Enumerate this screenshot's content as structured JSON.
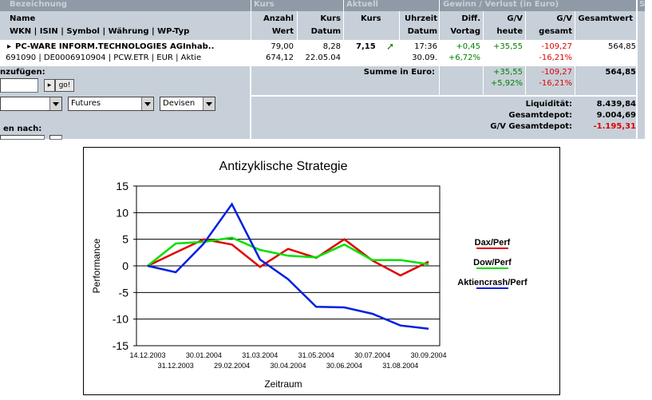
{
  "table": {
    "group_headers": {
      "bezeichnung": "Bezeichnung",
      "kurs": "Kurs",
      "aktuell": "Aktuell",
      "gewinn": "Gewinn / Verlust   (in Euro)",
      "s": "S"
    },
    "columns": {
      "name": "Name",
      "sub": "WKN | ISIN | Symbol | Währung | WP-Typ",
      "anzahl1": "Anzahl",
      "anzahl2": "Wert",
      "kurs1": "Kurs",
      "kurs2": "Datum",
      "aktkurs": "Kurs",
      "uhrzeit1": "Uhrzeit",
      "uhrzeit2": "Datum",
      "diff1": "Diff.",
      "diff2": "Vortag",
      "gv1": "G/V",
      "gv2": "heute",
      "gvg1": "G/V",
      "gvg2": "gesamt",
      "gesamtwert": "Gesamtwert"
    },
    "row": {
      "name": "PC-WARE INFORM.TECHNOLOGIES AGInhab..",
      "ids": "691090 | DE0006910904 | PCW.ETR | EUR | Aktie",
      "anzahl": "79,00",
      "wert": "674,12",
      "kurs": "8,28",
      "kurs_datum": "22.05.04",
      "akt_kurs": "7,15",
      "uhrzeit": "17:36",
      "datum": "30.09.",
      "diff": "+0,45",
      "diff_pct": "+6,72%",
      "gv_heute": "+35,55",
      "gv_gesamt": "-109,27",
      "gv_gesamt_pct": "-16,21%",
      "gesamtwert": "564,85"
    },
    "summe": {
      "label": "Summe in Euro:",
      "gv_heute": "+35,55",
      "gv_heute_pct": "+5,92%",
      "gv_gesamt": "-109,27",
      "gv_gesamt_pct": "-16,21%",
      "gesamtwert": "564,85"
    },
    "totals": {
      "liq_label": "Liquidität:",
      "liq_value": "8.439,84",
      "depot_label": "Gesamtdepot:",
      "depot_value": "9.004,69",
      "gv_label": "G/V Gesamtdepot:",
      "gv_value": "-1.195,31"
    },
    "left_panel": {
      "add_label": "nzufügen:",
      "go_label": "go!",
      "select1_value": "",
      "select2_value": "Futures",
      "select3_value": "Devisen",
      "sort_label": "en nach:"
    }
  },
  "colors": {
    "dax": "#e00000",
    "dow": "#00e000",
    "crash": "#0020e0",
    "green": "#008000",
    "red": "#e00000"
  },
  "chart_data": {
    "type": "line",
    "title": "Antizyklische Strategie",
    "xlabel": "Zeitraum",
    "ylabel": "Performance",
    "ylim": [
      -15,
      15
    ],
    "yticks": [
      15,
      10,
      5,
      0,
      -5,
      -10,
      -15
    ],
    "grid": "horizontal",
    "legend_position": "right",
    "x_ticks_upper": [
      "14.12.2003",
      "30.01.2004",
      "31.03.2004",
      "31.05.2004",
      "30.07.2004",
      "30.09.2004"
    ],
    "x_ticks_lower": [
      "31.12.2003",
      "29.02.2004",
      "30.04.2004",
      "30.06.2004",
      "31.08.2004"
    ],
    "x": [
      "14.12.2003",
      "31.12.2003",
      "30.01.2004",
      "29.02.2004",
      "31.03.2004",
      "30.04.2004",
      "31.05.2004",
      "30.06.2004",
      "30.07.2004",
      "31.08.2004",
      "30.09.2004"
    ],
    "series": [
      {
        "name": "Dax/Perf",
        "color": "#e00000",
        "values": [
          0,
          2.5,
          5,
          4,
          -0.2,
          3.2,
          1.5,
          5,
          1,
          -1.8,
          0.8
        ]
      },
      {
        "name": "Dow/Perf",
        "color": "#00e000",
        "values": [
          0,
          4.2,
          4.5,
          5.3,
          3,
          1.9,
          1.6,
          4,
          1.1,
          1.1,
          0.3
        ]
      },
      {
        "name": "Aktiencrash/Perf",
        "color": "#0020e0",
        "values": [
          0,
          -1.2,
          4.2,
          11.6,
          1.2,
          -2.5,
          -7.7,
          -7.8,
          -9,
          -11.2,
          -11.8
        ]
      }
    ]
  }
}
